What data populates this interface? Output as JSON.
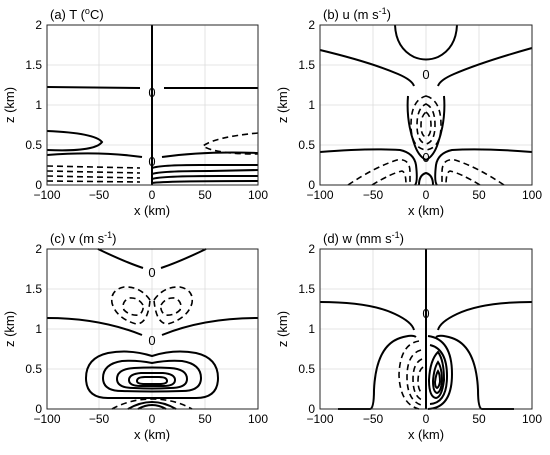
{
  "chart_data": [
    {
      "type": "contour",
      "title": "(a) T (",
      "title_sup": "o",
      "title_end": "C)",
      "xlabel": "x (km)",
      "ylabel": "z (km)",
      "xlim": [
        -100,
        100
      ],
      "ylim": [
        0,
        2
      ],
      "xticks": [
        "-100",
        "-50",
        "0",
        "50",
        "100"
      ],
      "yticks": [
        "0",
        "0.5",
        "1",
        "1.5",
        "2"
      ],
      "grid": true,
      "contour_labels": [
        "0",
        "0"
      ]
    },
    {
      "type": "contour",
      "title": "(b) u (m s",
      "title_sup": "-1",
      "title_end": ")",
      "xlabel": "x (km)",
      "ylabel": "z (km)",
      "xlim": [
        -100,
        100
      ],
      "ylim": [
        0,
        2
      ],
      "xticks": [
        "-100",
        "-50",
        "0",
        "50",
        "100"
      ],
      "yticks": [
        "0",
        "0.5",
        "1",
        "1.5",
        "2"
      ],
      "grid": true,
      "contour_labels": [
        "0",
        "0"
      ]
    },
    {
      "type": "contour",
      "title": "(c) v (m s",
      "title_sup": "-1",
      "title_end": ")",
      "xlabel": "x (km)",
      "ylabel": "z (km)",
      "xlim": [
        -100,
        100
      ],
      "ylim": [
        0,
        2
      ],
      "xticks": [
        "-100",
        "-50",
        "0",
        "50",
        "100"
      ],
      "yticks": [
        "0",
        "0.5",
        "1",
        "1.5",
        "2"
      ],
      "grid": true,
      "contour_labels": [
        "0",
        "0"
      ]
    },
    {
      "type": "contour",
      "title": "(d) w (mm s",
      "title_sup": "-1",
      "title_end": ")",
      "xlabel": "x (km)",
      "ylabel": "z (km)",
      "xlim": [
        -100,
        100
      ],
      "ylim": [
        0,
        2
      ],
      "xticks": [
        "-100",
        "-50",
        "0",
        "50",
        "100"
      ],
      "yticks": [
        "0",
        "0.5",
        "1",
        "1.5",
        "2"
      ],
      "grid": true,
      "contour_labels": [
        "0"
      ]
    }
  ]
}
